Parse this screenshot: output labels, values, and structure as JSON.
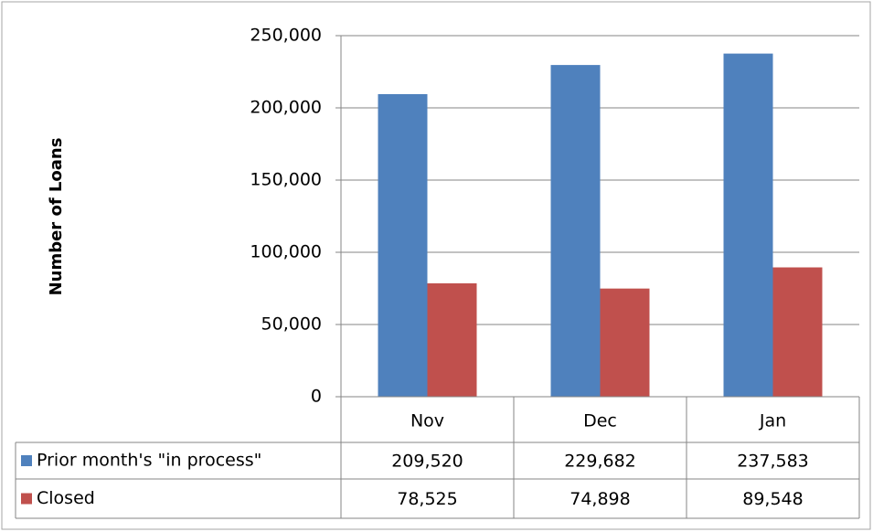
{
  "chart_data": {
    "type": "bar",
    "y_label": "Number of Loans",
    "categories": [
      "Nov",
      "Dec",
      "Jan"
    ],
    "series": [
      {
        "name": "Prior month's \"in process\"",
        "color": "#4f81bd",
        "values": [
          209520,
          229682,
          237583
        ],
        "value_labels": [
          "209,520",
          "229,682",
          "237,583"
        ]
      },
      {
        "name": "Closed",
        "color": "#c0504d",
        "values": [
          78525,
          74898,
          89548
        ],
        "value_labels": [
          "78,525",
          "74,898",
          "89,548"
        ]
      }
    ],
    "ylim": [
      0,
      250000
    ],
    "yticks": [
      0,
      {
        "value": 50000,
        "label": "50,000"
      },
      {
        "value": 100000,
        "label": "100,000"
      },
      {
        "value": 150000,
        "label": "150,000"
      },
      {
        "value": 200000,
        "label": "200,000"
      },
      {
        "value": 250000,
        "label": "250,000"
      }
    ],
    "grid": true
  }
}
